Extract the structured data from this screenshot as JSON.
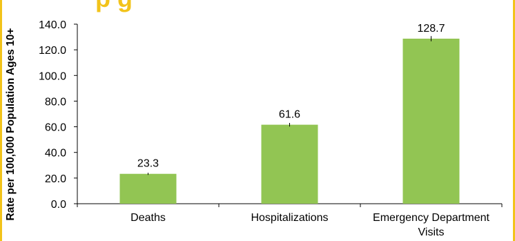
{
  "colors": {
    "bar": "#92C553",
    "border": "#F2C31A",
    "title": "#F2C31A",
    "axis": "#000000"
  },
  "chart_data": {
    "type": "bar",
    "title": "",
    "title_fragment": "p     g",
    "ylabel": "Rate per 100,000 Population Ages 10+",
    "xlabel": "",
    "categories": [
      "Deaths",
      "Hospitalizations",
      "Emergency Department Visits"
    ],
    "category_lines": [
      [
        "Deaths"
      ],
      [
        "Hospitalizations"
      ],
      [
        "Emergency Department",
        "Visits"
      ]
    ],
    "values": [
      23.3,
      61.6,
      128.7
    ],
    "data_labels": [
      "23.3",
      "61.6",
      "128.7"
    ],
    "error_bars": [
      0.8,
      1.4,
      2.0
    ],
    "ylim": [
      0,
      140
    ],
    "yticks": [
      0,
      20,
      40,
      60,
      80,
      100,
      120,
      140
    ],
    "ytick_labels": [
      "0.0",
      "20.0",
      "40.0",
      "60.0",
      "80.0",
      "100.0",
      "120.0",
      "140.0"
    ],
    "grid": false,
    "legend": "none"
  }
}
